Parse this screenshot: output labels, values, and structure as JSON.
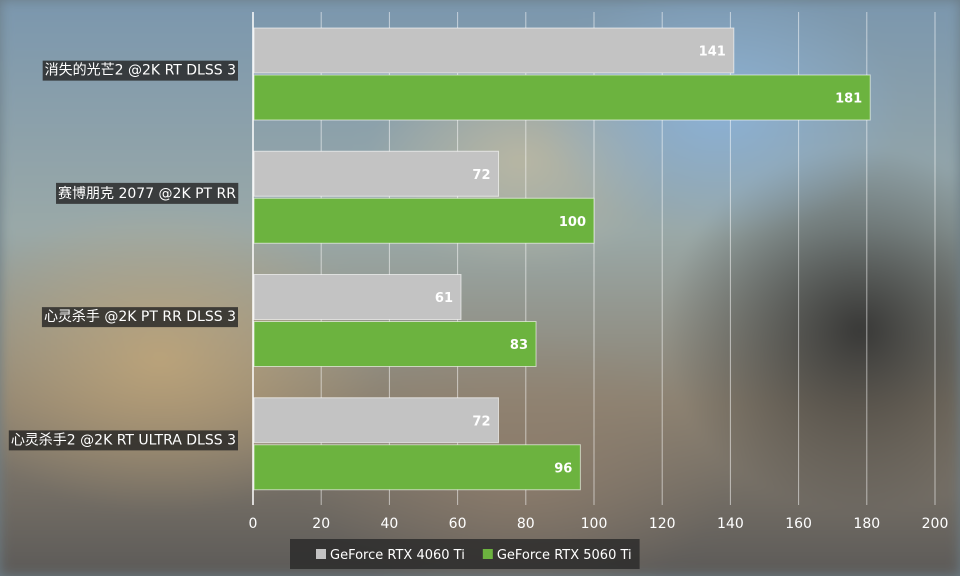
{
  "chart_data": {
    "type": "bar",
    "orientation": "horizontal",
    "categories": [
      "消失的光芒2 @2K RT DLSS 3",
      "赛博朋克 2077 @2K PT RR",
      "心灵杀手 @2K PT RR DLSS 3",
      "心灵杀手2 @2K RT ULTRA DLSS 3"
    ],
    "series": [
      {
        "name": "GeForce RTX 4060 Ti",
        "values": [
          141,
          72,
          61,
          72
        ],
        "color": "#c3c3c3"
      },
      {
        "name": "GeForce RTX 5060 Ti",
        "values": [
          181,
          100,
          83,
          96
        ],
        "color": "#6cb33f"
      }
    ],
    "xlim": [
      0,
      200
    ],
    "xticks": [
      0,
      20,
      40,
      60,
      80,
      100,
      120,
      140,
      160,
      180,
      200
    ],
    "grid": true,
    "legend_position": "bottom-center"
  }
}
